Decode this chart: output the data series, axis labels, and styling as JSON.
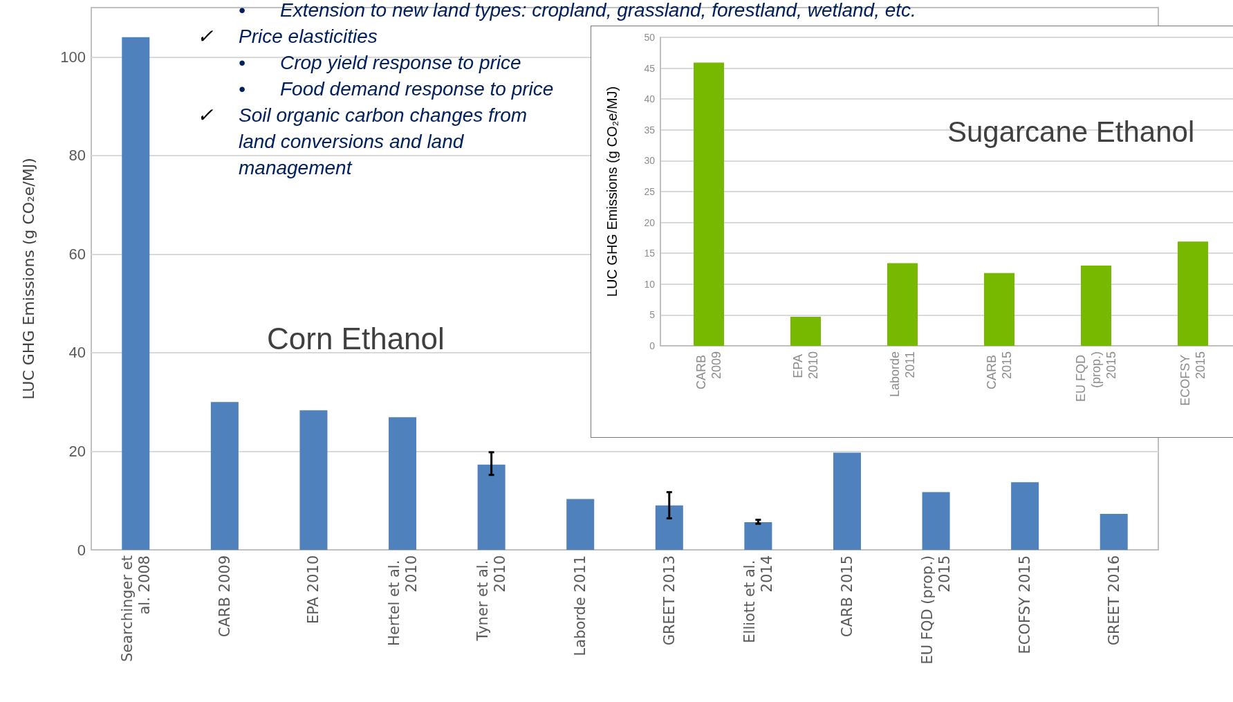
{
  "chart_data": [
    {
      "type": "bar",
      "title": "Corn Ethanol",
      "ylabel": "LUC GHG Emissions (g CO₂e/MJ)",
      "categories": [
        "Searchinger et al. 2008",
        "CARB 2009",
        "EPA 2010",
        "Hertel et al. 2010",
        "Tyner et al. 2010",
        "Laborde 2011",
        "GREET 2013",
        "Elliott et al. 2014",
        "CARB 2015",
        "EU FQD (prop.) 2015",
        "ECOFSY 2015",
        "GREET 2016"
      ],
      "values": [
        104,
        30,
        28.3,
        26.9,
        17.3,
        10.3,
        9.0,
        5.6,
        19.7,
        11.7,
        13.7,
        7.3
      ],
      "errors": [
        null,
        null,
        null,
        null,
        [
          15.2,
          19.8
        ],
        null,
        [
          6.4,
          11.7
        ],
        [
          5.3,
          6.1
        ],
        null,
        null,
        null,
        null
      ],
      "color": "#4f81bd",
      "ylim": [
        0,
        110
      ],
      "yticks": [
        0,
        20,
        40,
        60,
        80,
        100
      ],
      "grid": "y",
      "annotations": [
        "• Extension to new land types: cropland, grassland, forestland, wetland, etc.",
        "✓ Price elasticities",
        "• Crop yield response to price",
        "• Food demand response to price",
        "✓ Soil organic carbon changes from land conversions and land management"
      ]
    },
    {
      "type": "bar",
      "title": "Sugarcane Ethanol",
      "ylabel": "LUC GHG Emissions (g CO₂e/MJ)",
      "categories": [
        "CARB 2009",
        "EPA 2010",
        "Laborde 2011",
        "CARB 2015",
        "EU FQD (prop.) 2015",
        "ECOFSY 2015"
      ],
      "values": [
        45.9,
        4.7,
        13.4,
        11.8,
        13.0,
        16.9
      ],
      "color": "#76b900",
      "ylim": [
        0,
        50
      ],
      "yticks": [
        0,
        5,
        10,
        15,
        20,
        25,
        30,
        35,
        40,
        45,
        50
      ],
      "grid": "y"
    }
  ]
}
